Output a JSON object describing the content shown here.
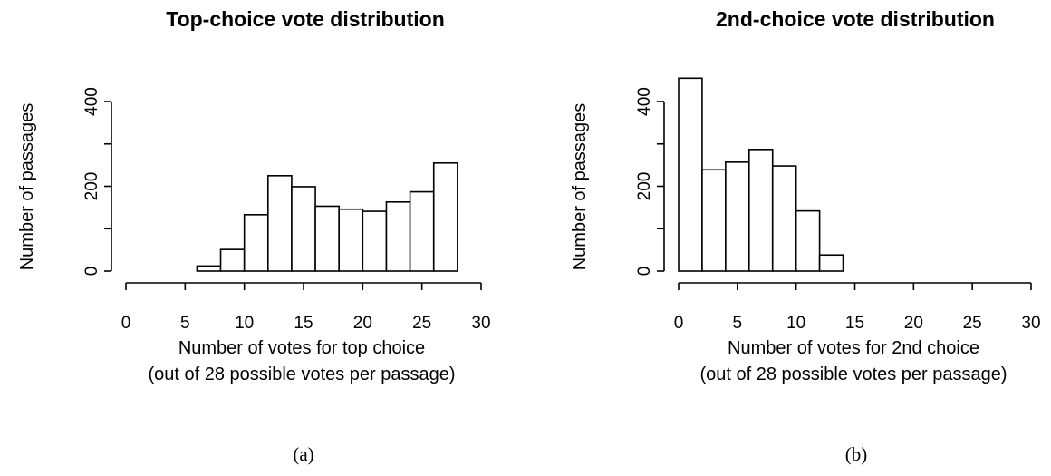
{
  "chart_data": [
    {
      "type": "bar",
      "title": "Top-choice vote distribution",
      "xlabel": "Number of votes for top choice",
      "xlabel_line2": "(out of 28 possible votes per passage)",
      "ylabel": "Number of passages",
      "caption": "(a)",
      "bin_edges": [
        6,
        8,
        10,
        12,
        14,
        16,
        18,
        20,
        22,
        24,
        26,
        28
      ],
      "values": [
        12,
        51,
        133,
        225,
        199,
        153,
        146,
        141,
        163,
        187,
        255
      ],
      "xlim": [
        0,
        30
      ],
      "ylim": [
        0,
        400
      ],
      "xticks": [
        0,
        5,
        10,
        15,
        20,
        25,
        30
      ],
      "yticks": [
        0,
        200,
        400
      ],
      "ytick_marks": [
        0,
        100,
        200,
        300,
        400
      ],
      "grid": false,
      "legend": "none"
    },
    {
      "type": "bar",
      "title": "2nd-choice vote distribution",
      "xlabel": "Number of votes for 2nd choice",
      "xlabel_line2": "(out of 28 possible votes per passage)",
      "ylabel": "Number of passages",
      "caption": "(b)",
      "bin_edges": [
        0,
        2,
        4,
        6,
        8,
        10,
        12,
        14
      ],
      "values": [
        455,
        239,
        257,
        287,
        248,
        142,
        38
      ],
      "xlim": [
        0,
        30
      ],
      "ylim": [
        0,
        400
      ],
      "xticks": [
        0,
        5,
        10,
        15,
        20,
        25,
        30
      ],
      "yticks": [
        0,
        200,
        400
      ],
      "ytick_marks": [
        0,
        100,
        200,
        300,
        400
      ],
      "grid": false,
      "legend": "none"
    }
  ]
}
